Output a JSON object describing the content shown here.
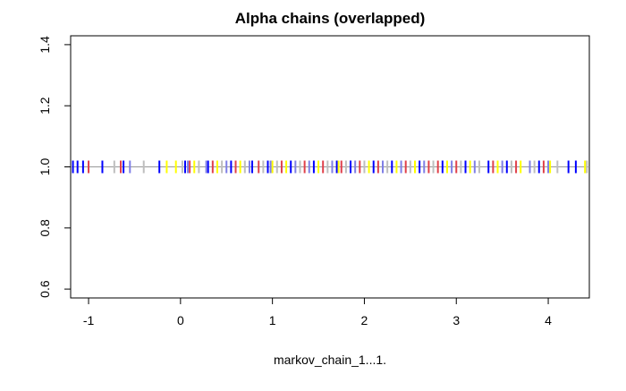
{
  "chart_data": {
    "type": "strip",
    "title": "Alpha chains (overlapped)",
    "x_label": "markov_chain_1...1.",
    "y": 1,
    "series": [
      {
        "color": "#0000ff",
        "x": [
          -1.17,
          -1.12,
          -1.06,
          -0.85,
          -0.62,
          -0.23,
          0.05,
          0.3,
          0.55,
          0.78,
          0.95,
          1.2,
          1.45,
          1.7,
          1.85,
          2.1,
          2.3,
          2.6,
          2.85,
          3.1,
          3.35,
          3.55,
          3.9,
          4.22,
          4.3
        ]
      },
      {
        "color": "#e0404a",
        "x": [
          -1.0,
          -0.65,
          0.1,
          0.35,
          0.6,
          0.85,
          1.1,
          1.35,
          1.55,
          1.75,
          1.95,
          2.15,
          2.45,
          2.7,
          2.8,
          3.0,
          3.4,
          3.65,
          3.95
        ]
      },
      {
        "color": "#bebebe",
        "x": [
          -0.72,
          -0.4,
          0.02,
          0.2,
          0.45,
          0.7,
          0.9,
          1.05,
          1.3,
          1.6,
          1.8,
          2.0,
          2.25,
          2.5,
          2.75,
          3.05,
          3.25,
          3.6,
          3.85,
          4.1,
          4.42
        ]
      },
      {
        "color": "#ffff00",
        "x": [
          -0.15,
          -0.05,
          0.15,
          0.4,
          0.65,
          1.0,
          1.15,
          1.5,
          1.72,
          2.05,
          2.35,
          2.55,
          2.9,
          3.15,
          3.45,
          3.7,
          4.02,
          4.4
        ]
      },
      {
        "color": "#7f7fe6",
        "x": [
          -0.55,
          0.08,
          0.28,
          0.5,
          0.75,
          0.98,
          1.25,
          1.4,
          1.65,
          1.9,
          2.2,
          2.4,
          2.65,
          2.95,
          3.2,
          3.5,
          3.8,
          4.0
        ]
      }
    ],
    "xlim": [
      -1.195,
      4.447
    ],
    "xticks": [
      -1,
      0,
      1,
      2,
      3,
      4
    ],
    "ylim": [
      0.571,
      1.429
    ],
    "yticks": [
      0.6,
      0.8,
      {
        "value": 1,
        "label": "1.0"
      },
      1.2,
      1.4
    ]
  }
}
